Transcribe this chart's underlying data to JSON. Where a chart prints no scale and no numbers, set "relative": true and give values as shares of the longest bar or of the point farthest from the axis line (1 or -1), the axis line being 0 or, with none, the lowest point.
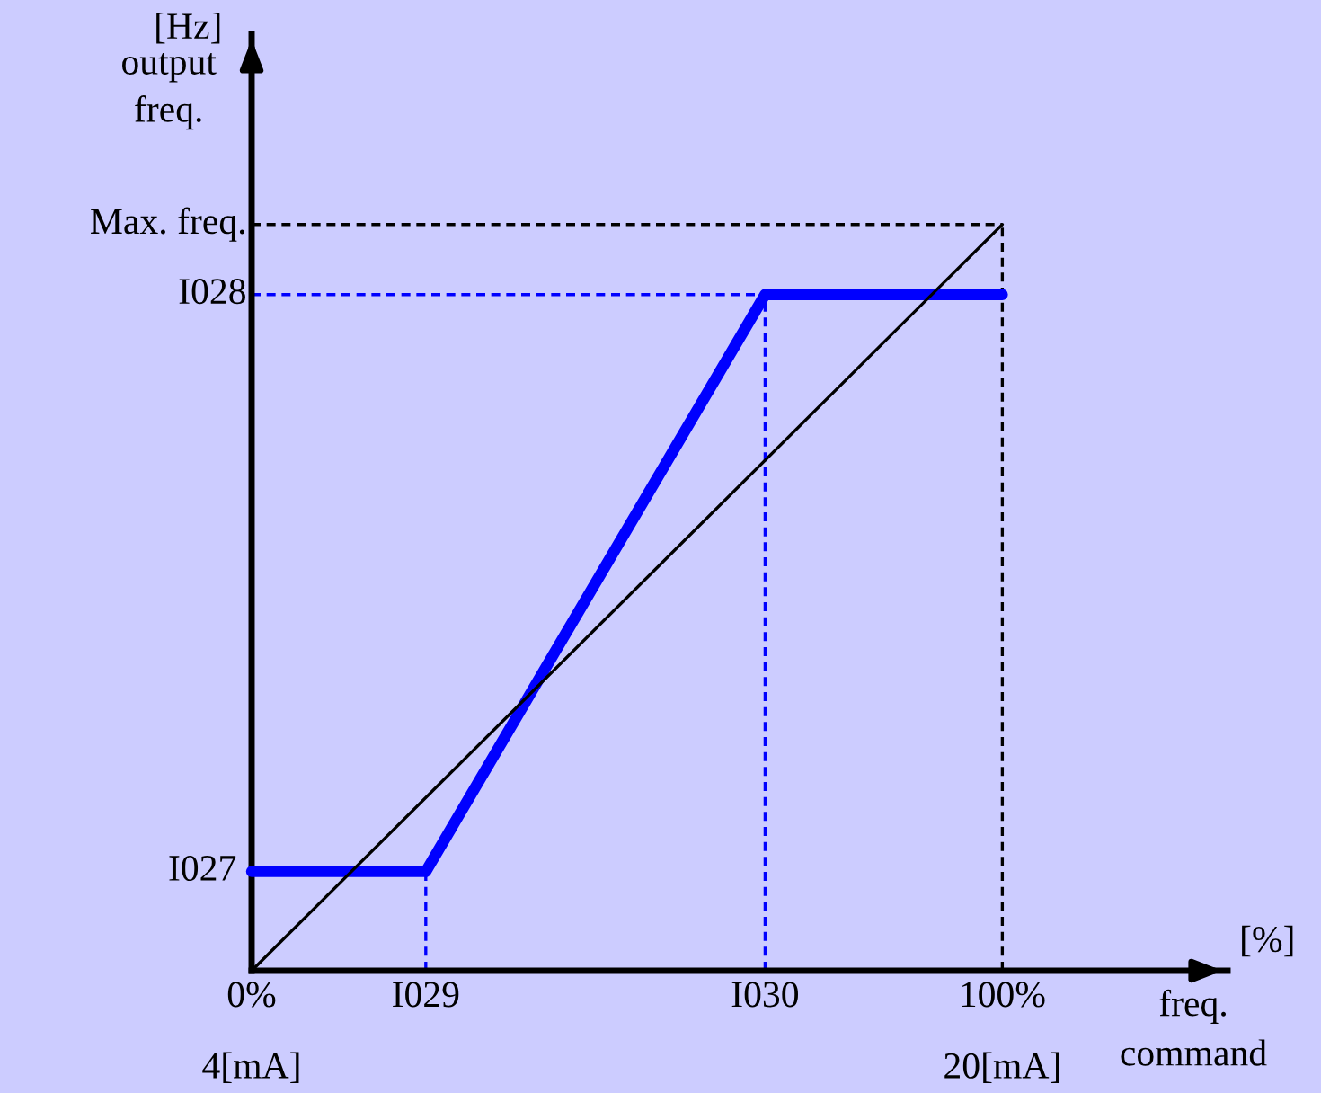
{
  "chart_data": {
    "type": "line",
    "relative": true,
    "xlabel": "freq.\ncommand",
    "ylabel": "output\nfreq.",
    "annotations": [
      "[Hz]",
      "[%]",
      "4[mA]",
      "20[mA]",
      {
        "text": "I027",
        "x": 0,
        "y": 0.133
      }
    ],
    "xlim": [
      0,
      130
    ],
    "xticks": [
      {
        "value": 0,
        "label": "0%"
      },
      {
        "value": 23.2,
        "label": "I029"
      },
      {
        "value": 68.4,
        "label": "I030"
      },
      {
        "value": 100,
        "label": "100%"
      }
    ],
    "series": [
      {
        "color": "#0000ff",
        "x": [
          0,
          23.2,
          68.4,
          100
        ],
        "values": [
          0.133,
          0.133,
          0.906,
          0.906
        ]
      },
      {
        "color": "#000000",
        "x": [
          0,
          100
        ],
        "values": [
          0,
          1
        ]
      }
    ],
    "ref_lines": [
      {
        "axis": "y",
        "value": 1,
        "label": "Max. freq.",
        "color": "#000000",
        "line_style": "dashed"
      },
      {
        "axis": "y",
        "value": 0.906,
        "label": "I028",
        "color": "#0000ff",
        "line_style": "dashed"
      },
      {
        "axis": "x",
        "value": 23.2,
        "label": null,
        "color": "#0000ff",
        "line_style": "dashed"
      },
      {
        "axis": "x",
        "value": 68.4,
        "label": null,
        "color": "#0000ff",
        "line_style": "dashed"
      },
      {
        "axis": "x",
        "value": 100,
        "label": null,
        "color": "#000000",
        "line_style": "dashed"
      }
    ],
    "grid": false,
    "legend": false,
    "marker": "none"
  }
}
